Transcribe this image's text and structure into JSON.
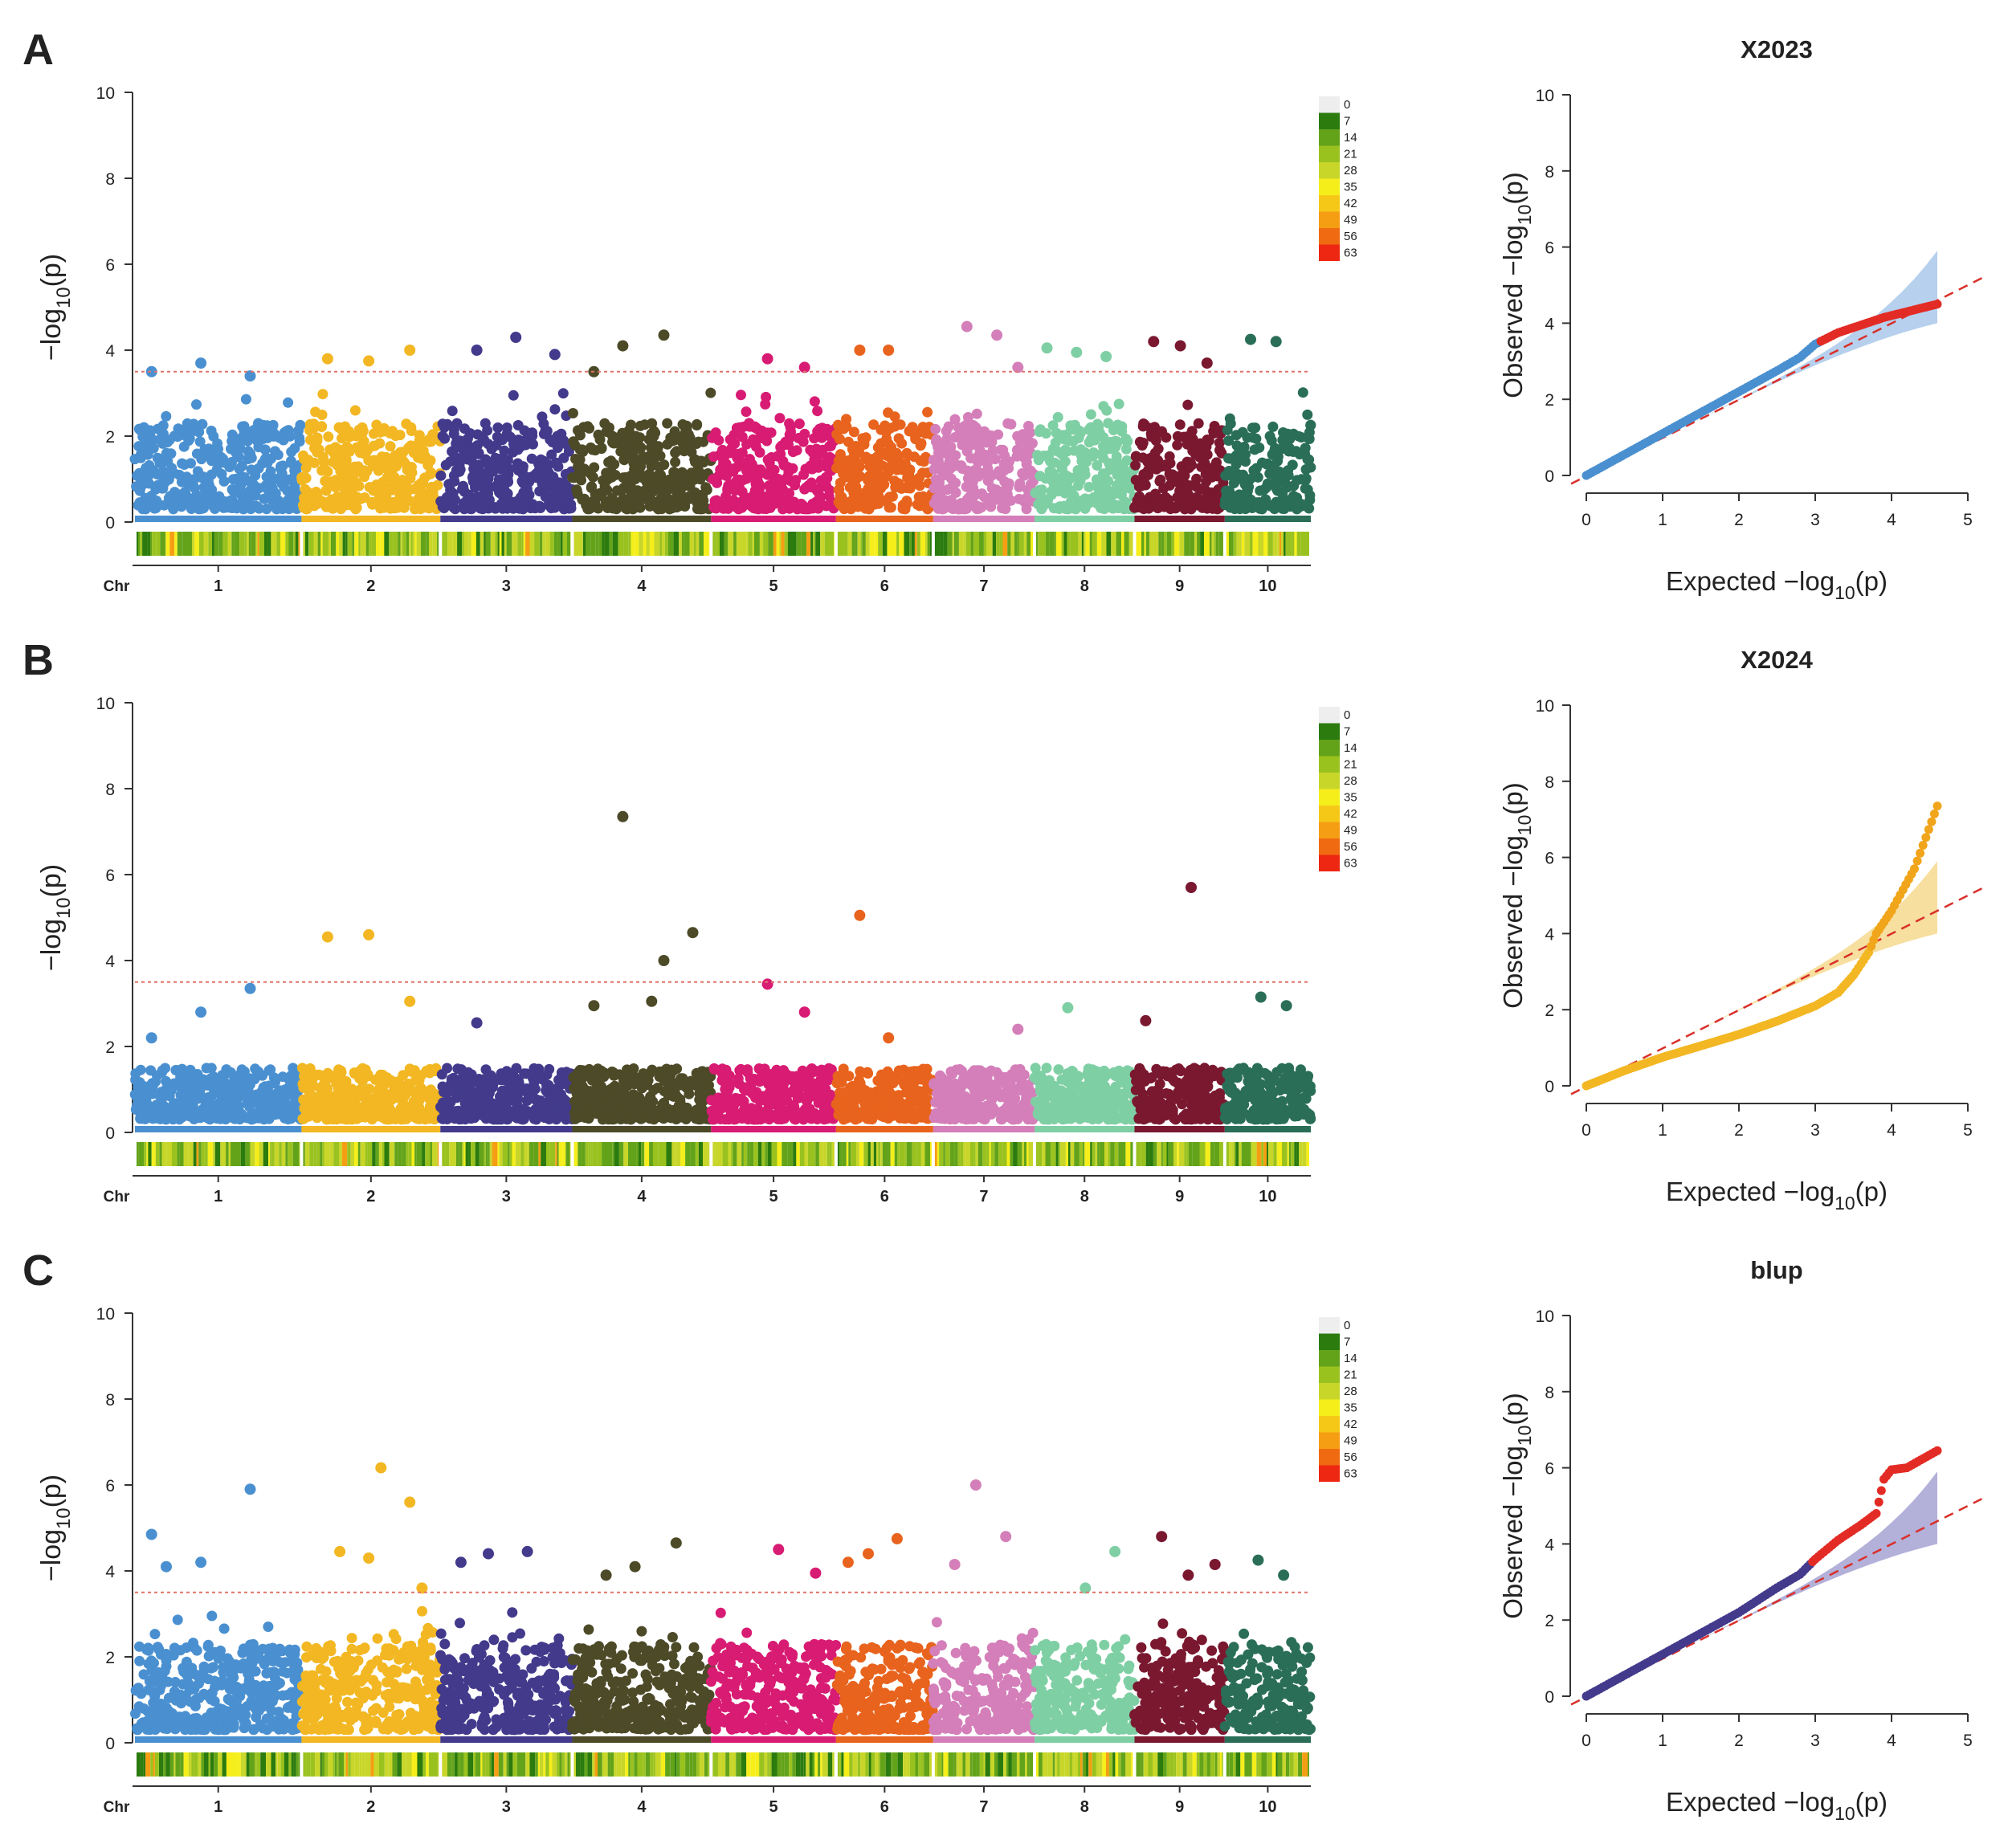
{
  "figure": {
    "chr_label": "Chr",
    "y_axis_label_base": "−log",
    "qq_x_label_word": "Expected",
    "qq_y_label_word": "Observed",
    "log_sub": "10",
    "p_symbol": "(p)",
    "threshold_color": "#e0736a",
    "chromosome_colors": [
      "#4a90d0",
      "#f2b722",
      "#433a8c",
      "#4d4a28",
      "#d81b73",
      "#e8631d",
      "#d47fb9",
      "#7fcfa4",
      "#7a1830",
      "#2a6e58"
    ],
    "density_legend": {
      "labels": [
        "0",
        "7",
        "14",
        "21",
        "28",
        "35",
        "42",
        "49",
        "56",
        "63"
      ],
      "colors": [
        "#eeeeee",
        "#2b7b0e",
        "#63a31a",
        "#9ac21f",
        "#c8d62a",
        "#f5ee1b",
        "#f5c818",
        "#f59e13",
        "#f06a12",
        "#ee2712"
      ]
    }
  },
  "panels": [
    {
      "letter": "A",
      "qq_title": "X2023",
      "qq_point_color": "#4a90d0",
      "qq_band_color": "#a9c8ea",
      "qq_sig_color": "#e32b25"
    },
    {
      "letter": "B",
      "qq_title": "X2024",
      "qq_point_color": "#f2b722",
      "qq_band_color": "#f6d98e",
      "qq_sig_color": "#f0a51b"
    },
    {
      "letter": "C",
      "qq_title": "blup",
      "qq_point_color": "#433a8c",
      "qq_band_color": "#a6a2d2",
      "qq_sig_color": "#e32b25"
    }
  ],
  "chart_data": [
    {
      "type": "scatter",
      "name": "Manhattan plot A",
      "xlabel": "Chr",
      "ylabel": "-log10(p)",
      "ylim": [
        0,
        10
      ],
      "y_ticks": [
        0,
        2,
        4,
        6,
        8,
        10
      ],
      "chromosomes": [
        "1",
        "2",
        "3",
        "4",
        "5",
        "6",
        "7",
        "8",
        "9",
        "10"
      ],
      "threshold": 3.5,
      "peak_points": [
        {
          "chr": "1",
          "value": 3.5
        },
        {
          "chr": "1",
          "value": 3.7
        },
        {
          "chr": "1",
          "value": 3.4
        },
        {
          "chr": "2",
          "value": 3.8
        },
        {
          "chr": "2",
          "value": 3.75
        },
        {
          "chr": "2",
          "value": 4.0
        },
        {
          "chr": "3",
          "value": 4.0
        },
        {
          "chr": "3",
          "value": 4.3
        },
        {
          "chr": "3",
          "value": 3.9
        },
        {
          "chr": "4",
          "value": 4.1
        },
        {
          "chr": "4",
          "value": 4.35
        },
        {
          "chr": "4",
          "value": 3.5
        },
        {
          "chr": "5",
          "value": 3.8
        },
        {
          "chr": "5",
          "value": 3.6
        },
        {
          "chr": "6",
          "value": 4.0
        },
        {
          "chr": "6",
          "value": 4.0
        },
        {
          "chr": "7",
          "value": 3.6
        },
        {
          "chr": "7",
          "value": 4.55
        },
        {
          "chr": "7",
          "value": 4.35
        },
        {
          "chr": "8",
          "value": 4.05
        },
        {
          "chr": "8",
          "value": 3.95
        },
        {
          "chr": "8",
          "value": 3.85
        },
        {
          "chr": "9",
          "value": 4.2
        },
        {
          "chr": "9",
          "value": 4.1
        },
        {
          "chr": "9",
          "value": 3.7
        },
        {
          "chr": "10",
          "value": 4.25
        },
        {
          "chr": "10",
          "value": 4.2
        }
      ]
    },
    {
      "type": "scatter",
      "name": "QQ plot X2023",
      "title": "X2023",
      "xlabel": "Expected -log10(p)",
      "ylabel": "Observed -log10(p)",
      "xlim": [
        0,
        5
      ],
      "ylim": [
        0,
        10
      ],
      "x_ticks": [
        0,
        1,
        2,
        3,
        4,
        5
      ],
      "y_ticks": [
        0,
        2,
        4,
        6,
        8,
        10
      ],
      "points_x": [
        0,
        0.5,
        1,
        1.5,
        2,
        2.5,
        2.8,
        3.0,
        3.3,
        3.6,
        3.9,
        4.1,
        4.3,
        4.6
      ],
      "points_y": [
        0,
        0.55,
        1.1,
        1.65,
        2.2,
        2.75,
        3.1,
        3.45,
        3.75,
        3.95,
        4.15,
        4.25,
        4.35,
        4.5
      ],
      "confidence_band_upper_at_max": 5.9,
      "confidence_band_lower_at_max": 4.0
    },
    {
      "type": "scatter",
      "name": "Manhattan plot B",
      "xlabel": "Chr",
      "ylabel": "-log10(p)",
      "ylim": [
        0,
        10
      ],
      "y_ticks": [
        0,
        2,
        4,
        6,
        8,
        10
      ],
      "chromosomes": [
        "1",
        "2",
        "3",
        "4",
        "5",
        "6",
        "7",
        "8",
        "9",
        "10"
      ],
      "threshold": 3.5,
      "peak_points": [
        {
          "chr": "1",
          "value": 2.2
        },
        {
          "chr": "1",
          "value": 2.8
        },
        {
          "chr": "1",
          "value": 3.35
        },
        {
          "chr": "2",
          "value": 4.55
        },
        {
          "chr": "2",
          "value": 4.6
        },
        {
          "chr": "2",
          "value": 3.05
        },
        {
          "chr": "3",
          "value": 2.55
        },
        {
          "chr": "4",
          "value": 3.05
        },
        {
          "chr": "4",
          "value": 4.65
        },
        {
          "chr": "4",
          "value": 7.35
        },
        {
          "chr": "4",
          "value": 4.0
        },
        {
          "chr": "4",
          "value": 2.95
        },
        {
          "chr": "5",
          "value": 3.45
        },
        {
          "chr": "5",
          "value": 2.8
        },
        {
          "chr": "6",
          "value": 5.05
        },
        {
          "chr": "6",
          "value": 2.2
        },
        {
          "chr": "7",
          "value": 2.4
        },
        {
          "chr": "8",
          "value": 2.9
        },
        {
          "chr": "9",
          "value": 5.7
        },
        {
          "chr": "9",
          "value": 2.6
        },
        {
          "chr": "10",
          "value": 3.15
        },
        {
          "chr": "10",
          "value": 2.95
        }
      ]
    },
    {
      "type": "scatter",
      "name": "QQ plot X2024",
      "title": "X2024",
      "xlabel": "Expected -log10(p)",
      "ylabel": "Observed -log10(p)",
      "xlim": [
        0,
        5
      ],
      "ylim": [
        0,
        10
      ],
      "x_ticks": [
        0,
        1,
        2,
        3,
        4,
        5
      ],
      "y_ticks": [
        0,
        2,
        4,
        6,
        8,
        10
      ],
      "points_x": [
        0,
        0.5,
        1,
        1.5,
        2,
        2.5,
        3.0,
        3.3,
        3.5,
        3.6,
        3.7,
        3.8,
        4.0,
        4.3,
        4.6
      ],
      "points_y": [
        0,
        0.4,
        0.75,
        1.05,
        1.35,
        1.7,
        2.1,
        2.45,
        2.9,
        3.2,
        3.5,
        4.0,
        4.6,
        5.7,
        7.35
      ],
      "confidence_band_upper_at_max": 5.9,
      "confidence_band_lower_at_max": 4.0
    },
    {
      "type": "scatter",
      "name": "Manhattan plot C",
      "xlabel": "Chr",
      "ylabel": "-log10(p)",
      "ylim": [
        0,
        10
      ],
      "y_ticks": [
        0,
        2,
        4,
        6,
        8,
        10
      ],
      "chromosomes": [
        "1",
        "2",
        "3",
        "4",
        "5",
        "6",
        "7",
        "8",
        "9",
        "10"
      ],
      "threshold": 3.5,
      "peak_points": [
        {
          "chr": "1",
          "value": 4.85
        },
        {
          "chr": "1",
          "value": 4.2
        },
        {
          "chr": "1",
          "value": 5.9
        },
        {
          "chr": "1",
          "value": 4.1
        },
        {
          "chr": "2",
          "value": 4.3
        },
        {
          "chr": "2",
          "value": 5.6
        },
        {
          "chr": "2",
          "value": 4.45
        },
        {
          "chr": "2",
          "value": 6.4
        },
        {
          "chr": "2",
          "value": 3.6
        },
        {
          "chr": "3",
          "value": 4.4
        },
        {
          "chr": "3",
          "value": 4.45
        },
        {
          "chr": "3",
          "value": 4.2
        },
        {
          "chr": "4",
          "value": 4.1
        },
        {
          "chr": "4",
          "value": 4.65
        },
        {
          "chr": "4",
          "value": 3.9
        },
        {
          "chr": "5",
          "value": 4.5
        },
        {
          "chr": "5",
          "value": 3.95
        },
        {
          "chr": "6",
          "value": 4.4
        },
        {
          "chr": "6",
          "value": 4.75
        },
        {
          "chr": "6",
          "value": 4.2
        },
        {
          "chr": "7",
          "value": 6.0
        },
        {
          "chr": "7",
          "value": 4.8
        },
        {
          "chr": "7",
          "value": 4.15
        },
        {
          "chr": "8",
          "value": 3.6
        },
        {
          "chr": "8",
          "value": 4.45
        },
        {
          "chr": "9",
          "value": 4.8
        },
        {
          "chr": "9",
          "value": 3.9
        },
        {
          "chr": "9",
          "value": 4.15
        },
        {
          "chr": "10",
          "value": 4.25
        },
        {
          "chr": "10",
          "value": 3.9
        }
      ]
    },
    {
      "type": "scatter",
      "name": "QQ plot blup",
      "title": "blup",
      "xlabel": "Expected -log10(p)",
      "ylabel": "Observed -log10(p)",
      "xlim": [
        0,
        5
      ],
      "ylim": [
        0,
        10
      ],
      "x_ticks": [
        0,
        1,
        2,
        3,
        4,
        5
      ],
      "y_ticks": [
        0,
        2,
        4,
        6,
        8,
        10
      ],
      "points_x": [
        0,
        0.5,
        1,
        1.5,
        2,
        2.5,
        2.8,
        3.0,
        3.3,
        3.6,
        3.8,
        3.9,
        4.0,
        4.2,
        4.6
      ],
      "points_y": [
        0,
        0.55,
        1.1,
        1.65,
        2.2,
        2.85,
        3.2,
        3.6,
        4.1,
        4.5,
        4.8,
        5.7,
        5.95,
        6.0,
        6.45
      ],
      "confidence_band_upper_at_max": 5.9,
      "confidence_band_lower_at_max": 4.0
    }
  ]
}
